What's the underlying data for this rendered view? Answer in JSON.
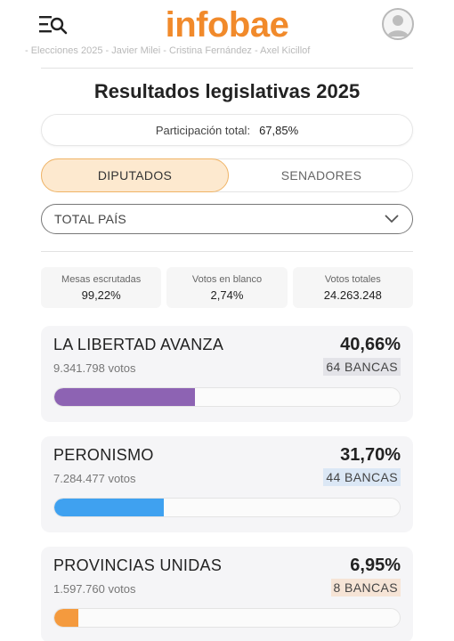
{
  "header": {
    "logo_text": "infobae",
    "logo_color": "#f18a2b",
    "menu_icon": "menu-search-icon",
    "avatar_icon": "user-avatar-icon"
  },
  "ticker": {
    "text": "- Elecciones 2025 - Javier Milei - Cristina Fernández - Axel Kicillof"
  },
  "page": {
    "title": "Resultados legislativas 2025"
  },
  "participation": {
    "label": "Participación total:",
    "value": "67,85%"
  },
  "tabs": [
    {
      "label": "DIPUTADOS",
      "active": true
    },
    {
      "label": "SENADORES",
      "active": false
    }
  ],
  "region_select": {
    "value": "TOTAL PAÍS"
  },
  "stats": [
    {
      "label": "Mesas escrutadas",
      "value": "99,22%"
    },
    {
      "label": "Votos en blanco",
      "value": "2,74%"
    },
    {
      "label": "Votos totales",
      "value": "24.263.248"
    }
  ],
  "parties": [
    {
      "name": "LA LIBERTAD AVANZA",
      "percent": "40,66%",
      "percent_value": 40.66,
      "votes": "9.341.798 votos",
      "bancas": "64 BANCAS",
      "color": "#8d63b3",
      "bancas_bg": "#e3e3e8"
    },
    {
      "name": "PERONISMO",
      "percent": "31,70%",
      "percent_value": 31.7,
      "votes": "7.284.477 votos",
      "bancas": "44 BANCAS",
      "color": "#3fa1f0",
      "bancas_bg": "#dbe7f5"
    },
    {
      "name": "PROVINCIAS UNIDAS",
      "percent": "6,95%",
      "percent_value": 6.95,
      "votes": "1.597.760 votos",
      "bancas": "8 BANCAS",
      "color": "#f49a3e",
      "bancas_bg": "#f6e4d6"
    }
  ]
}
